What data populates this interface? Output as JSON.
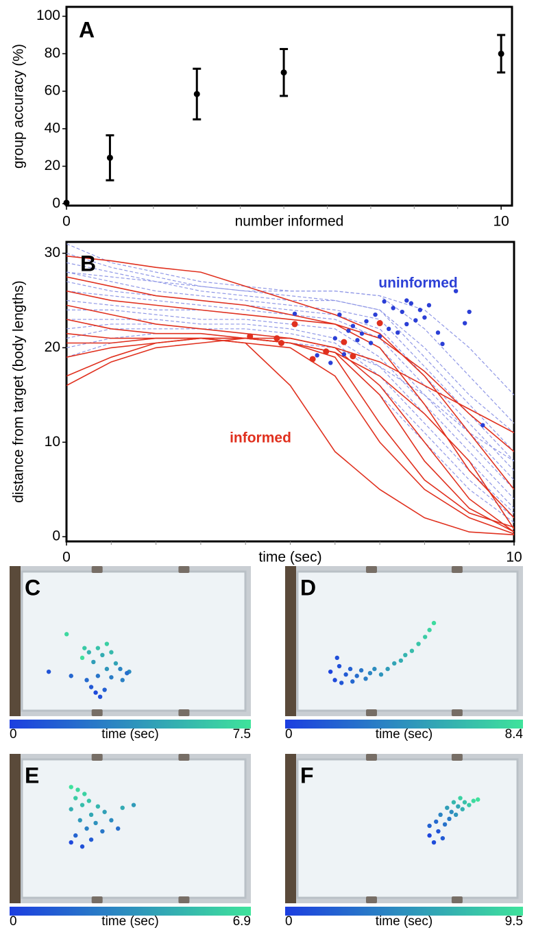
{
  "chart_data": [
    {
      "type": "errorbar",
      "panel": "A",
      "xlabel": "number informed",
      "ylabel": "group accuracy (%)",
      "x": [
        0,
        1,
        3,
        5,
        10
      ],
      "values": [
        0.5,
        24.5,
        58.5,
        70,
        80
      ],
      "errors": [
        null,
        12,
        13.5,
        12.5,
        10
      ],
      "color": "#000000",
      "xlim": [
        0,
        10.25
      ],
      "ylim": [
        -1,
        105
      ],
      "xticks": [
        0,
        10
      ],
      "xminorticks": [
        1,
        2,
        3,
        4,
        5,
        6,
        7,
        8,
        9
      ],
      "yticks": [
        0,
        20,
        40,
        60,
        80,
        100
      ]
    },
    {
      "type": "line",
      "panel": "B",
      "xlabel": "time (sec)",
      "ylabel": "distance from target (body lengths)",
      "xlim": [
        0,
        10
      ],
      "ylim": [
        -0.5,
        31.2
      ],
      "xticks": [
        0,
        10
      ],
      "xminorticks": [
        1,
        2,
        3,
        4,
        5,
        6,
        7,
        8,
        9
      ],
      "yticks": [
        0,
        10,
        20,
        30
      ],
      "annotations": [
        {
          "text": "uninformed",
          "color": "#2b3fd6"
        },
        {
          "text": "informed",
          "color": "#e0301e"
        }
      ],
      "x": [
        0,
        1,
        2,
        3,
        4,
        5,
        6,
        7,
        8,
        9,
        10
      ],
      "series": [
        {
          "color": "#8f97e6",
          "dashed": true,
          "values": [
            31,
            29,
            28,
            27,
            26.5,
            26,
            26,
            25.5,
            22,
            17,
            12
          ]
        },
        {
          "color": "#8f97e6",
          "dashed": true,
          "values": [
            30,
            28.5,
            27.5,
            26.5,
            26,
            25.5,
            25,
            24,
            20,
            15,
            11
          ]
        },
        {
          "color": "#8f97e6",
          "dashed": true,
          "values": [
            29,
            28,
            27,
            26,
            25.5,
            25,
            25,
            24,
            19,
            14,
            9
          ]
        },
        {
          "color": "#8f97e6",
          "dashed": true,
          "values": [
            28,
            27,
            26,
            25.5,
            25,
            24.5,
            24,
            23,
            18,
            13,
            8
          ]
        },
        {
          "color": "#8f97e6",
          "dashed": true,
          "values": [
            27,
            26,
            25.5,
            25,
            24.5,
            24,
            23.5,
            22,
            17,
            12,
            7
          ]
        },
        {
          "color": "#8f97e6",
          "dashed": true,
          "values": [
            26,
            25.5,
            25,
            24.5,
            24,
            23.5,
            23,
            21,
            16,
            11,
            6
          ]
        },
        {
          "color": "#8f97e6",
          "dashed": true,
          "values": [
            25,
            24.5,
            24,
            24,
            23.5,
            23,
            22.5,
            20,
            15,
            10,
            5
          ]
        },
        {
          "color": "#8f97e6",
          "dashed": true,
          "values": [
            24,
            24,
            23.5,
            23,
            23,
            22.5,
            22,
            19,
            14,
            9,
            4
          ]
        },
        {
          "color": "#8f97e6",
          "dashed": true,
          "values": [
            23,
            23,
            23,
            22.5,
            22.5,
            22,
            21,
            18,
            13,
            8,
            3
          ]
        },
        {
          "color": "#8f97e6",
          "dashed": true,
          "values": [
            22,
            22.5,
            22.5,
            22,
            22,
            21.5,
            20.5,
            17,
            12,
            7,
            2.5
          ]
        },
        {
          "color": "#8f97e6",
          "dashed": true,
          "values": [
            21,
            22,
            22,
            22,
            21.5,
            21,
            20,
            16,
            11,
            6,
            2
          ]
        },
        {
          "color": "#8f97e6",
          "dashed": true,
          "values": [
            20,
            21,
            21.5,
            21.5,
            21,
            20.5,
            19.5,
            15,
            10,
            5,
            1.5
          ]
        },
        {
          "color": "#8f97e6",
          "dashed": true,
          "values": [
            19,
            20.5,
            21,
            21,
            21,
            20.5,
            20,
            18,
            15,
            11,
            8
          ]
        },
        {
          "color": "#8f97e6",
          "dashed": true,
          "values": [
            28,
            27.5,
            27,
            26.5,
            26,
            26,
            26,
            25.5,
            24,
            20,
            15
          ]
        },
        {
          "color": "#e0301e",
          "dashed": false,
          "values": [
            29.7,
            29.2,
            28.5,
            28,
            26.5,
            25,
            23.5,
            21.5,
            17,
            11,
            5
          ]
        },
        {
          "color": "#e0301e",
          "dashed": false,
          "values": [
            27.5,
            26.5,
            25.5,
            25,
            24.5,
            23.5,
            22.5,
            20,
            14,
            7,
            2
          ]
        },
        {
          "color": "#e0301e",
          "dashed": false,
          "values": [
            26,
            25,
            24.5,
            24,
            23.5,
            23,
            22.5,
            21,
            17.5,
            13,
            9
          ]
        },
        {
          "color": "#e0301e",
          "dashed": false,
          "values": [
            24.5,
            23.5,
            22.5,
            22,
            21.5,
            21,
            20,
            16,
            10,
            4,
            0.5
          ]
        },
        {
          "color": "#e0301e",
          "dashed": false,
          "values": [
            23,
            22,
            21.5,
            21.5,
            21,
            20.5,
            19.5,
            15,
            8,
            3,
            0.5
          ]
        },
        {
          "color": "#e0301e",
          "dashed": false,
          "values": [
            21.5,
            21,
            21,
            21,
            20.5,
            20,
            17,
            10,
            5,
            2,
            0.3
          ]
        },
        {
          "color": "#e0301e",
          "dashed": false,
          "values": [
            20.5,
            20.5,
            21,
            21,
            20.5,
            16,
            9,
            5,
            2,
            0.5,
            0.2
          ]
        },
        {
          "color": "#e0301e",
          "dashed": false,
          "values": [
            19,
            20,
            20.5,
            21,
            21,
            20.5,
            19,
            12,
            6,
            2.5,
            1
          ]
        },
        {
          "color": "#e0301e",
          "dashed": false,
          "values": [
            17,
            19,
            20.5,
            21,
            21,
            21,
            20,
            18.5,
            16,
            13.5,
            11
          ]
        },
        {
          "color": "#e0301e",
          "dashed": false,
          "values": [
            16,
            18.5,
            20,
            20.5,
            21,
            20.5,
            19.5,
            17,
            13,
            8,
            0.8
          ]
        }
      ],
      "markers": [
        {
          "color": "#2b3fd6",
          "x": [
            5.1,
            5.6,
            6.0,
            6.1,
            6.3,
            6.4,
            6.5,
            6.6,
            6.7,
            6.8,
            6.9,
            7.0,
            7.1,
            7.2,
            7.3,
            7.4,
            7.5,
            7.6,
            7.7,
            7.8,
            7.9,
            8.0,
            8.1,
            8.3,
            8.4,
            8.7,
            8.9,
            9.0,
            9.3,
            5.9,
            6.2,
            7.6
          ],
          "y": [
            23.6,
            19.2,
            21.0,
            23.5,
            21.8,
            22.3,
            20.8,
            21.5,
            22.8,
            20.5,
            23.5,
            21.2,
            24.9,
            22.0,
            24.2,
            21.6,
            23.8,
            22.5,
            24.7,
            22.9,
            24.0,
            23.2,
            24.5,
            21.6,
            20.4,
            26.0,
            22.6,
            23.8,
            11.8,
            18.4,
            19.3,
            25.0
          ]
        },
        {
          "color": "#e0301e",
          "x": [
            4.1,
            4.7,
            4.8,
            5.1,
            5.5,
            5.8,
            6.2,
            6.4,
            7.0
          ],
          "y": [
            21.2,
            21.0,
            20.5,
            22.5,
            18.8,
            19.6,
            20.6,
            19.1,
            22.6
          ]
        }
      ]
    },
    {
      "type": "image",
      "panel": "C",
      "cblabel": "time (sec)",
      "clim": [
        0,
        7.5
      ],
      "colormap": [
        "#1c3ee0",
        "#3fe39b"
      ],
      "x": [
        0.33,
        0.35,
        0.31,
        0.37,
        0.29,
        0.34,
        0.4,
        0.45,
        0.48,
        0.38,
        0.32,
        0.42,
        0.36,
        0.3,
        0.4,
        0.34,
        0.28,
        0.38,
        0.2,
        0.27,
        0.12,
        0.22,
        0.44,
        0.47
      ],
      "y": [
        0.87,
        0.9,
        0.83,
        0.85,
        0.78,
        0.75,
        0.76,
        0.78,
        0.72,
        0.7,
        0.65,
        0.66,
        0.6,
        0.58,
        0.58,
        0.55,
        0.55,
        0.52,
        0.45,
        0.62,
        0.72,
        0.75,
        0.7,
        0.73
      ],
      "t": [
        0.5,
        0.8,
        1.2,
        1.5,
        2,
        2.5,
        2.8,
        3,
        3.5,
        4,
        4.3,
        4.6,
        5,
        5.3,
        5.6,
        6,
        6.3,
        6.6,
        7,
        7.3,
        1.0,
        1.8,
        3.2,
        2.2
      ]
    },
    {
      "type": "image",
      "panel": "D",
      "cblabel": "time (sec)",
      "clim": [
        0,
        8.4
      ],
      "colormap": [
        "#1c3ee0",
        "#3fe39b"
      ],
      "x": [
        0.15,
        0.17,
        0.19,
        0.2,
        0.22,
        0.24,
        0.25,
        0.27,
        0.29,
        0.31,
        0.33,
        0.35,
        0.38,
        0.41,
        0.44,
        0.47,
        0.49,
        0.52,
        0.55,
        0.58,
        0.6,
        0.62,
        0.18
      ],
      "y": [
        0.72,
        0.78,
        0.68,
        0.8,
        0.74,
        0.7,
        0.79,
        0.75,
        0.71,
        0.77,
        0.73,
        0.7,
        0.74,
        0.7,
        0.66,
        0.64,
        0.6,
        0.57,
        0.52,
        0.47,
        0.42,
        0.37,
        0.62
      ],
      "t": [
        0.3,
        0.6,
        0.9,
        1.2,
        1.5,
        1.8,
        2.1,
        2.4,
        2.8,
        3.2,
        3.6,
        4,
        4.4,
        4.8,
        5.2,
        5.6,
        6,
        6.4,
        6.8,
        7.2,
        7.6,
        8,
        0.8
      ]
    },
    {
      "type": "image",
      "panel": "E",
      "cblabel": "time (sec)",
      "clim": [
        0,
        6.9
      ],
      "colormap": [
        "#1c3ee0",
        "#3fe39b"
      ],
      "x": [
        0.22,
        0.25,
        0.28,
        0.24,
        0.3,
        0.27,
        0.34,
        0.22,
        0.31,
        0.37,
        0.26,
        0.33,
        0.4,
        0.29,
        0.36,
        0.43,
        0.24,
        0.31,
        0.27,
        0.22,
        0.45,
        0.5
      ],
      "y": [
        0.2,
        0.22,
        0.25,
        0.28,
        0.3,
        0.33,
        0.34,
        0.36,
        0.4,
        0.38,
        0.44,
        0.46,
        0.44,
        0.5,
        0.52,
        0.5,
        0.55,
        0.58,
        0.63,
        0.6,
        0.35,
        0.33
      ],
      "t": [
        6.8,
        6.5,
        6.2,
        5.9,
        5.6,
        5.3,
        5,
        4.7,
        4.4,
        4.1,
        3.8,
        3.5,
        3.2,
        2.8,
        2.4,
        2,
        1.6,
        1.2,
        0.8,
        0.4,
        4.5,
        3.9
      ]
    },
    {
      "type": "image",
      "panel": "F",
      "cblabel": "time (sec)",
      "clim": [
        0,
        9.5
      ],
      "colormap": [
        "#1c3ee0",
        "#3fe39b"
      ],
      "x": [
        0.6,
        0.62,
        0.64,
        0.66,
        0.6,
        0.63,
        0.67,
        0.69,
        0.65,
        0.7,
        0.72,
        0.68,
        0.73,
        0.75,
        0.71,
        0.76,
        0.78,
        0.74,
        0.8,
        0.82
      ],
      "y": [
        0.55,
        0.6,
        0.52,
        0.57,
        0.48,
        0.45,
        0.47,
        0.43,
        0.4,
        0.38,
        0.4,
        0.35,
        0.34,
        0.36,
        0.31,
        0.31,
        0.33,
        0.28,
        0.3,
        0.29
      ],
      "t": [
        0.4,
        0.8,
        1.2,
        1.6,
        2,
        2.5,
        3,
        3.5,
        4,
        4.5,
        5,
        5.5,
        6,
        6.5,
        7,
        7.5,
        8,
        8.5,
        9,
        9.4
      ]
    }
  ]
}
